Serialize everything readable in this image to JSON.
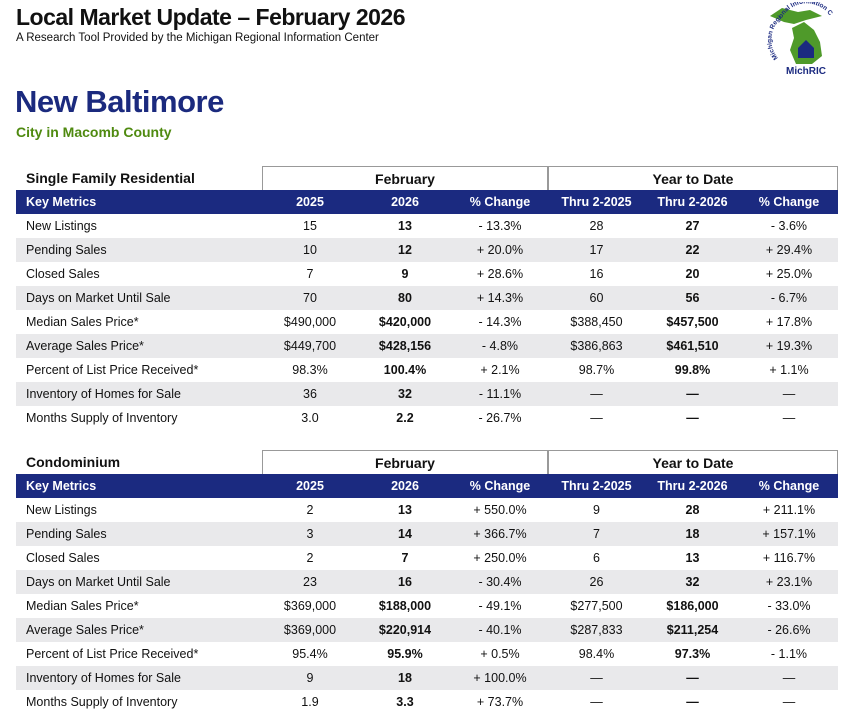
{
  "header": {
    "title": "Local Market Update – February 2026",
    "subtitle": "A Research Tool Provided by the Michigan Regional Information Center"
  },
  "logo": {
    "arc_text": "Michigan Regional Information Center",
    "name": "MichRIC"
  },
  "location": {
    "name": "New Baltimore",
    "subtitle": "City in Macomb County"
  },
  "tables": [
    {
      "title": "Single Family Residential",
      "group_headers": [
        "February",
        "Year to Date"
      ],
      "columns": [
        "Key Metrics",
        "2025",
        "2026",
        "% Change",
        "Thru 2-2025",
        "Thru 2-2026",
        "% Change"
      ],
      "rows": [
        [
          "New Listings",
          "15",
          "13",
          "- 13.3%",
          "28",
          "27",
          "- 3.6%"
        ],
        [
          "Pending Sales",
          "10",
          "12",
          "+ 20.0%",
          "17",
          "22",
          "+ 29.4%"
        ],
        [
          "Closed Sales",
          "7",
          "9",
          "+ 28.6%",
          "16",
          "20",
          "+ 25.0%"
        ],
        [
          "Days on Market Until Sale",
          "70",
          "80",
          "+ 14.3%",
          "60",
          "56",
          "- 6.7%"
        ],
        [
          "Median Sales Price*",
          "$490,000",
          "$420,000",
          "- 14.3%",
          "$388,450",
          "$457,500",
          "+ 17.8%"
        ],
        [
          "Average Sales Price*",
          "$449,700",
          "$428,156",
          "- 4.8%",
          "$386,863",
          "$461,510",
          "+ 19.3%"
        ],
        [
          "Percent of List Price Received*",
          "98.3%",
          "100.4%",
          "+ 2.1%",
          "98.7%",
          "99.8%",
          "+ 1.1%"
        ],
        [
          "Inventory of Homes for Sale",
          "36",
          "32",
          "- 11.1%",
          "—",
          "—",
          "—"
        ],
        [
          "Months Supply of Inventory",
          "3.0",
          "2.2",
          "- 26.7%",
          "—",
          "—",
          "—"
        ]
      ]
    },
    {
      "title": "Condominium",
      "group_headers": [
        "February",
        "Year to Date"
      ],
      "columns": [
        "Key Metrics",
        "2025",
        "2026",
        "% Change",
        "Thru 2-2025",
        "Thru 2-2026",
        "% Change"
      ],
      "rows": [
        [
          "New Listings",
          "2",
          "13",
          "+ 550.0%",
          "9",
          "28",
          "+ 211.1%"
        ],
        [
          "Pending Sales",
          "3",
          "14",
          "+ 366.7%",
          "7",
          "18",
          "+ 157.1%"
        ],
        [
          "Closed Sales",
          "2",
          "7",
          "+ 250.0%",
          "6",
          "13",
          "+ 116.7%"
        ],
        [
          "Days on Market Until Sale",
          "23",
          "16",
          "- 30.4%",
          "26",
          "32",
          "+ 23.1%"
        ],
        [
          "Median Sales Price*",
          "$369,000",
          "$188,000",
          "- 49.1%",
          "$277,500",
          "$186,000",
          "- 33.0%"
        ],
        [
          "Average Sales Price*",
          "$369,000",
          "$220,914",
          "- 40.1%",
          "$287,833",
          "$211,254",
          "- 26.6%"
        ],
        [
          "Percent of List Price Received*",
          "95.4%",
          "95.9%",
          "+ 0.5%",
          "98.4%",
          "97.3%",
          "- 1.1%"
        ],
        [
          "Inventory of Homes for Sale",
          "9",
          "18",
          "+ 100.0%",
          "—",
          "—",
          "—"
        ],
        [
          "Months Supply of Inventory",
          "1.9",
          "3.3",
          "+ 73.7%",
          "—",
          "—",
          "—"
        ]
      ]
    }
  ]
}
